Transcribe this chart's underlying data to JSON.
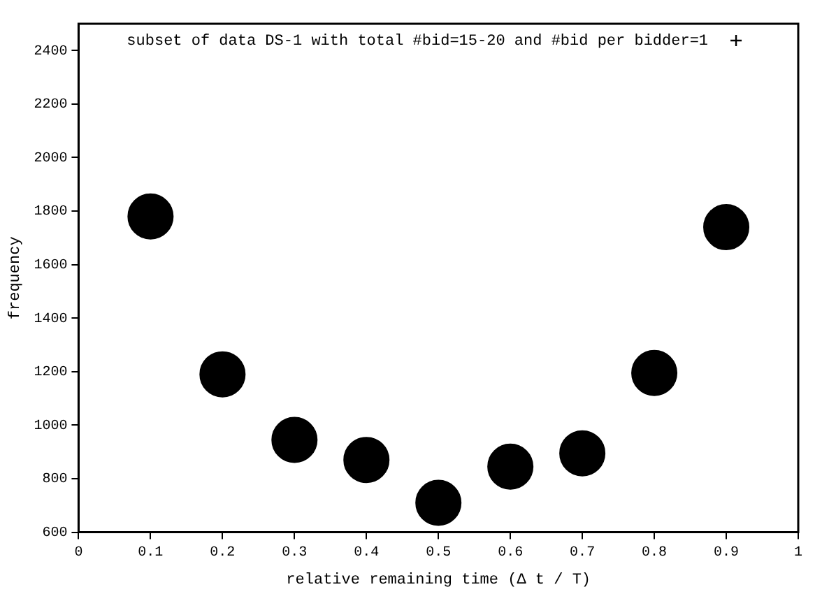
{
  "chart_data": {
    "type": "scatter",
    "xlabel": "relative remaining time (Δ t / T)",
    "ylabel": "frequency",
    "x": [
      0.1,
      0.2,
      0.3,
      0.4,
      0.5,
      0.6,
      0.7,
      0.8,
      0.9
    ],
    "series": [
      {
        "name": "subset of data DS-1 with total #bid=15-20 and #bid per bidder=1",
        "color": "#000000",
        "values": [
          1780,
          1190,
          945,
          870,
          710,
          845,
          895,
          1195,
          1740
        ]
      }
    ],
    "xlim": [
      0,
      1
    ],
    "xticks": [
      0,
      0.1,
      0.2,
      0.3,
      0.4,
      0.5,
      0.6,
      0.7,
      0.8,
      0.9,
      1
    ],
    "ylim": [
      600,
      2500
    ],
    "yticks": [
      600,
      800,
      1000,
      1200,
      1400,
      1600,
      1800,
      2000,
      2200,
      2400
    ],
    "grid": false,
    "legend": "top",
    "marker": "circle"
  }
}
